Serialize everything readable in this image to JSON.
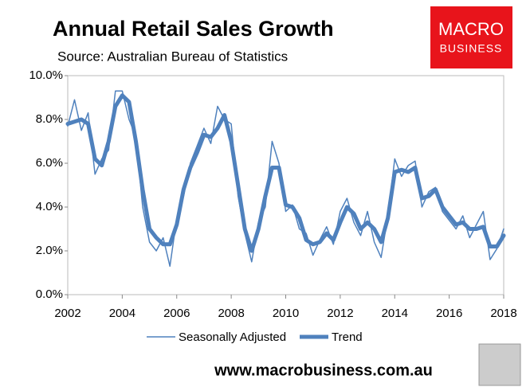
{
  "chart_data": {
    "type": "line",
    "title": "Annual Retail Sales Growth",
    "subtitle": "Source: Australian Bureau of Statistics",
    "logo_text": [
      "MACRO",
      "BUSINESS"
    ],
    "footer": "www.macrobusiness.com.au",
    "x": [
      2002,
      2002.25,
      2002.5,
      2002.75,
      2003,
      2003.25,
      2003.5,
      2003.75,
      2004,
      2004.25,
      2004.5,
      2004.75,
      2005,
      2005.25,
      2005.5,
      2005.75,
      2006,
      2006.25,
      2006.5,
      2006.75,
      2007,
      2007.25,
      2007.5,
      2007.75,
      2008,
      2008.25,
      2008.5,
      2008.75,
      2009,
      2009.25,
      2009.5,
      2009.75,
      2010,
      2010.25,
      2010.5,
      2010.75,
      2011,
      2011.25,
      2011.5,
      2011.75,
      2012,
      2012.25,
      2012.5,
      2012.75,
      2013,
      2013.25,
      2013.5,
      2013.75,
      2014,
      2014.25,
      2014.5,
      2014.75,
      2015,
      2015.25,
      2015.5,
      2015.75,
      2016,
      2016.25,
      2016.5,
      2016.75,
      2017,
      2017.25,
      2017.5,
      2017.75,
      2018
    ],
    "series": [
      {
        "name": "Seasonally Adjusted",
        "color": "#4f81bd",
        "width": 1.5,
        "values": [
          7.7,
          8.9,
          7.5,
          8.3,
          5.5,
          6.2,
          6.6,
          9.3,
          9.3,
          8.0,
          7.2,
          4.0,
          2.4,
          2.0,
          2.6,
          1.3,
          3.5,
          4.5,
          6.0,
          6.8,
          7.6,
          6.9,
          8.6,
          8.0,
          7.8,
          4.5,
          2.8,
          1.5,
          3.3,
          4.0,
          7.0,
          6.0,
          3.8,
          4.1,
          3.0,
          2.8,
          1.8,
          2.5,
          3.1,
          2.3,
          3.8,
          4.4,
          3.3,
          2.7,
          3.8,
          2.4,
          1.7,
          3.6,
          6.2,
          5.4,
          5.9,
          6.1,
          4.0,
          4.7,
          4.9,
          3.8,
          3.4,
          3.0,
          3.6,
          2.6,
          3.2,
          3.8,
          1.6,
          2.1,
          3.0
        ]
      },
      {
        "name": "Trend",
        "color": "#4f81bd",
        "width": 5,
        "values": [
          7.8,
          7.9,
          8.0,
          7.8,
          6.2,
          5.9,
          7.0,
          8.6,
          9.1,
          8.8,
          7.0,
          4.8,
          3.0,
          2.6,
          2.3,
          2.3,
          3.2,
          4.8,
          5.8,
          6.5,
          7.3,
          7.2,
          7.6,
          8.2,
          7.0,
          5.0,
          3.0,
          2.0,
          3.0,
          4.5,
          5.8,
          5.8,
          4.1,
          4.0,
          3.5,
          2.5,
          2.3,
          2.4,
          2.8,
          2.5,
          3.3,
          4.0,
          3.7,
          3.0,
          3.3,
          3.0,
          2.4,
          3.5,
          5.6,
          5.7,
          5.6,
          5.8,
          4.4,
          4.5,
          4.8,
          4.0,
          3.6,
          3.2,
          3.3,
          3.0,
          3.0,
          3.1,
          2.2,
          2.2,
          2.7
        ]
      }
    ],
    "xlim": [
      2002,
      2018
    ],
    "xticks": [
      2002,
      2004,
      2006,
      2008,
      2010,
      2012,
      2014,
      2016,
      2018
    ],
    "ylim": [
      0,
      10
    ],
    "yticks": [
      {
        "value": 0,
        "label": "0.0%"
      },
      {
        "value": 2,
        "label": "2.0%"
      },
      {
        "value": 4,
        "label": "4.0%"
      },
      {
        "value": 6,
        "label": "6.0%"
      },
      {
        "value": 8,
        "label": "8.0%"
      },
      {
        "value": 10,
        "label": "10.0%"
      }
    ],
    "legend": "bottom"
  }
}
